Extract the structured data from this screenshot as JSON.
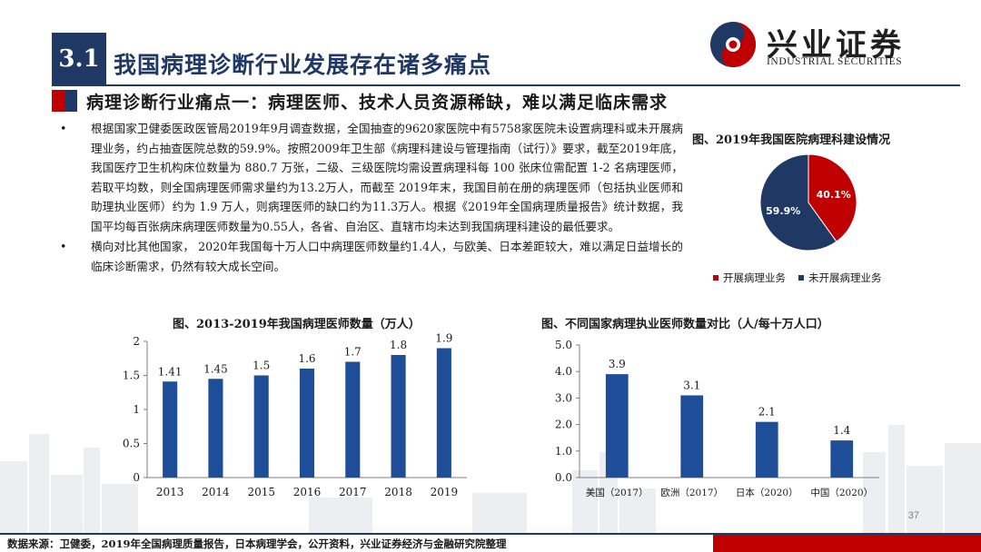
{
  "header": {
    "section_number": "3.1",
    "section_title": "我国病理诊断行业发展存在诸多痛点",
    "subtitle": "病理诊断行业痛点一：病理医师、技术人员资源稀缺，难以满足临床需求"
  },
  "logo": {
    "cn_name": "兴业证券",
    "en_name": "INDUSTRIAL SECURITIES"
  },
  "bullets": [
    {
      "marker": "•",
      "text": "根据国家卫健委医政医管局2019年9月调查数据，全国抽查的9620家医院中有5758家医院未设置病理科或未开展病理业务，约占抽查医院总数的59.9%。按照2009年卫生部《病理科建设与管理指南（试行）》要求，截至2019年底，我国医疗卫生机构床位数量为 880.7 万张，二级、三级医院均需设置病理科每 100 张床位需配置 1-2 名病理医师，若取平均数，则全国病理医师需求量约为13.2万人，而截至 2019年末，我国目前在册的病理医师（包括执业医师和助理执业医师）约为 1.9 万人，则病理医师的缺口约为11.3万人。根据《2019年全国病理质量报告》统计数据，我国平均每百张病床病理医师数量为0.55人，各省、自治区、直辖市均未达到我国病理科建设的最低要求。"
    },
    {
      "marker": "•",
      "text": "横向对比其他国家， 2020年我国每十万人口中病理医师数量约1.4人，与欧美、日本差距较大，难以满足日益增长的临床诊断需求，仍然有较大成长空间。"
    }
  ],
  "colors": {
    "navy": "#1f3864",
    "red": "#c00000",
    "bar_blue": "#1f4e99"
  },
  "chart_data": [
    {
      "type": "pie",
      "title": "图、2019年我国医院病理科建设情况",
      "slices": [
        {
          "name": "开展病理业务",
          "value": 40.1,
          "label": "40.1%",
          "color": "#c00000"
        },
        {
          "name": "未开展病理业务",
          "value": 59.9,
          "label": "59.9%",
          "color": "#1f3864"
        }
      ],
      "legend_position": "bottom"
    },
    {
      "type": "bar",
      "title": "图、2013-2019年我国病理医师数量（万人）",
      "categories": [
        "2013",
        "2014",
        "2015",
        "2016",
        "2017",
        "2018",
        "2019"
      ],
      "values": [
        1.41,
        1.45,
        1.5,
        1.6,
        1.7,
        1.8,
        1.9
      ],
      "value_labels": [
        "1.41",
        "1.45",
        "1.5",
        "1.6",
        "1.7",
        "1.8",
        "1.9"
      ],
      "ylim": [
        0,
        2
      ],
      "yticks": [
        "0",
        "0.5",
        "1",
        "1.5",
        "2"
      ],
      "grid": false
    },
    {
      "type": "bar",
      "title": "图、不同国家病理执业医师数量对比（人/每十万人口）",
      "categories": [
        "美国（2017）",
        "欧洲（2017）",
        "日本（2020）",
        "中国（2020）"
      ],
      "values": [
        3.9,
        3.1,
        2.1,
        1.4
      ],
      "value_labels": [
        "3.9",
        "3.1",
        "2.1",
        "1.4"
      ],
      "ylim": [
        0,
        5
      ],
      "yticks": [
        "0.0",
        "1.0",
        "2.0",
        "3.0",
        "4.0",
        "5.0"
      ],
      "grid": false
    }
  ],
  "footer": {
    "source": "数据来源：卫健委，2019年全国病理质量报告，日本病理学会，公开资料，兴业证券经济与金融研究院整理",
    "page_number": "37"
  }
}
